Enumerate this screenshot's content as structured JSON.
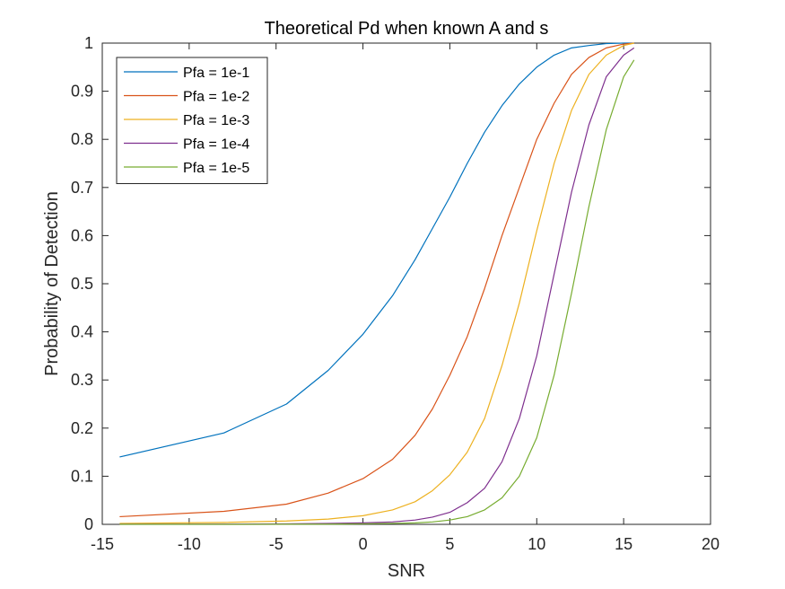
{
  "chart_data": {
    "type": "line",
    "title": "Theoretical Pd when known A and s",
    "xlabel": "SNR",
    "ylabel": "Probability of Detection",
    "xlim": [
      -15,
      20
    ],
    "ylim": [
      0,
      1
    ],
    "xticks": [
      "-15",
      "-10",
      "-5",
      "0",
      "5",
      "10",
      "15",
      "20"
    ],
    "yticks": [
      "0",
      "0.1",
      "0.2",
      "0.3",
      "0.4",
      "0.5",
      "0.6",
      "0.7",
      "0.8",
      "0.9",
      "1"
    ],
    "grid": false,
    "legend_position": "top-left",
    "series": [
      {
        "name": "Pfa = 1e-1",
        "color": "#0072bd",
        "x": [
          -14,
          -8,
          -4.4,
          -2,
          0,
          1.7,
          3,
          4,
          5,
          6,
          7,
          8,
          9,
          10,
          11,
          12,
          13,
          14,
          15,
          15.6
        ],
        "y": [
          0.14,
          0.19,
          0.25,
          0.32,
          0.395,
          0.475,
          0.55,
          0.615,
          0.68,
          0.75,
          0.815,
          0.87,
          0.915,
          0.95,
          0.975,
          0.99,
          0.995,
          0.999,
          1.0,
          1.0
        ]
      },
      {
        "name": "Pfa = 1e-2",
        "color": "#d95319",
        "x": [
          -14,
          -8,
          -4.4,
          -2,
          0,
          1.7,
          3,
          4,
          5,
          6,
          7,
          8,
          9,
          10,
          11,
          12,
          13,
          14,
          15,
          15.6
        ],
        "y": [
          0.016,
          0.027,
          0.042,
          0.065,
          0.095,
          0.135,
          0.185,
          0.24,
          0.31,
          0.39,
          0.49,
          0.6,
          0.7,
          0.8,
          0.875,
          0.935,
          0.97,
          0.99,
          0.998,
          1.0
        ]
      },
      {
        "name": "Pfa = 1e-3",
        "color": "#edb120",
        "x": [
          -14,
          -8,
          -4.4,
          -2,
          0,
          1.7,
          3,
          4,
          5,
          6,
          7,
          8,
          9,
          10,
          11,
          12,
          13,
          14,
          15,
          15.6
        ],
        "y": [
          0.002,
          0.004,
          0.007,
          0.011,
          0.018,
          0.03,
          0.047,
          0.07,
          0.103,
          0.15,
          0.22,
          0.33,
          0.46,
          0.61,
          0.75,
          0.86,
          0.935,
          0.975,
          0.995,
          1.0
        ]
      },
      {
        "name": "Pfa = 1e-4",
        "color": "#7e2f8e",
        "x": [
          -14,
          -8,
          -4.4,
          -2,
          0,
          1.7,
          3,
          4,
          5,
          6,
          7,
          8,
          9,
          10,
          11,
          12,
          13,
          14,
          15,
          15.6
        ],
        "y": [
          0.0002,
          0.0005,
          0.001,
          0.002,
          0.003,
          0.005,
          0.009,
          0.015,
          0.025,
          0.045,
          0.075,
          0.13,
          0.22,
          0.35,
          0.52,
          0.69,
          0.83,
          0.93,
          0.975,
          0.99
        ]
      },
      {
        "name": "Pfa = 1e-5",
        "color": "#77ac30",
        "x": [
          -14,
          -8,
          -4.4,
          -2,
          0,
          1.7,
          3,
          4,
          5,
          6,
          7,
          8,
          9,
          10,
          11,
          12,
          13,
          14,
          15,
          15.6
        ],
        "y": [
          0.0,
          0.0,
          0.0002,
          0.0005,
          0.001,
          0.002,
          0.003,
          0.005,
          0.009,
          0.016,
          0.03,
          0.055,
          0.1,
          0.18,
          0.31,
          0.48,
          0.66,
          0.82,
          0.93,
          0.965
        ]
      }
    ]
  }
}
